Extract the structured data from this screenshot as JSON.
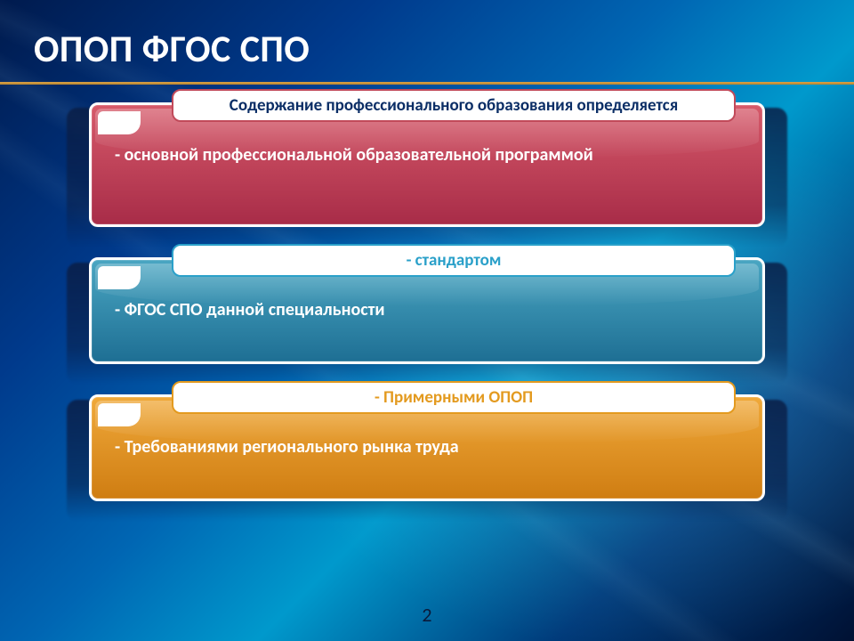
{
  "slide": {
    "title": "ОПОП ФГОС СПО",
    "page_number": "2",
    "title_rule_color": "#d9a24a",
    "background_colors": [
      "#001a4d",
      "#003a8c",
      "#0066b3",
      "#0099cc",
      "#003a7a",
      "#001133"
    ],
    "panels": [
      {
        "pill_text": "Содержание профессионального образования определяется",
        "pill_text_color": "#0b2e66",
        "pill_border_color": "#c14a5a",
        "body_text": "- основной профессиональной образовательной программой",
        "panel_bg_from": "#d65a6a",
        "panel_bg_to": "#a82c48",
        "min_height": 140
      },
      {
        "pill_text": "- стандартом",
        "pill_text_color": "#2aa0c9",
        "pill_border_color": "#2aa0c9",
        "body_text": "- ФГОС СПО данной специальности",
        "panel_bg_from": "#4aa6c2",
        "panel_bg_to": "#1e6f94",
        "min_height": 120
      },
      {
        "pill_text": "- Примерными ОПОП",
        "pill_text_color": "#e39a1f",
        "pill_border_color": "#e39a1f",
        "body_text": "- Требованиями  регионального рынка труда",
        "panel_bg_from": "#f0a93a",
        "panel_bg_to": "#cf7d12",
        "min_height": 120
      }
    ]
  }
}
